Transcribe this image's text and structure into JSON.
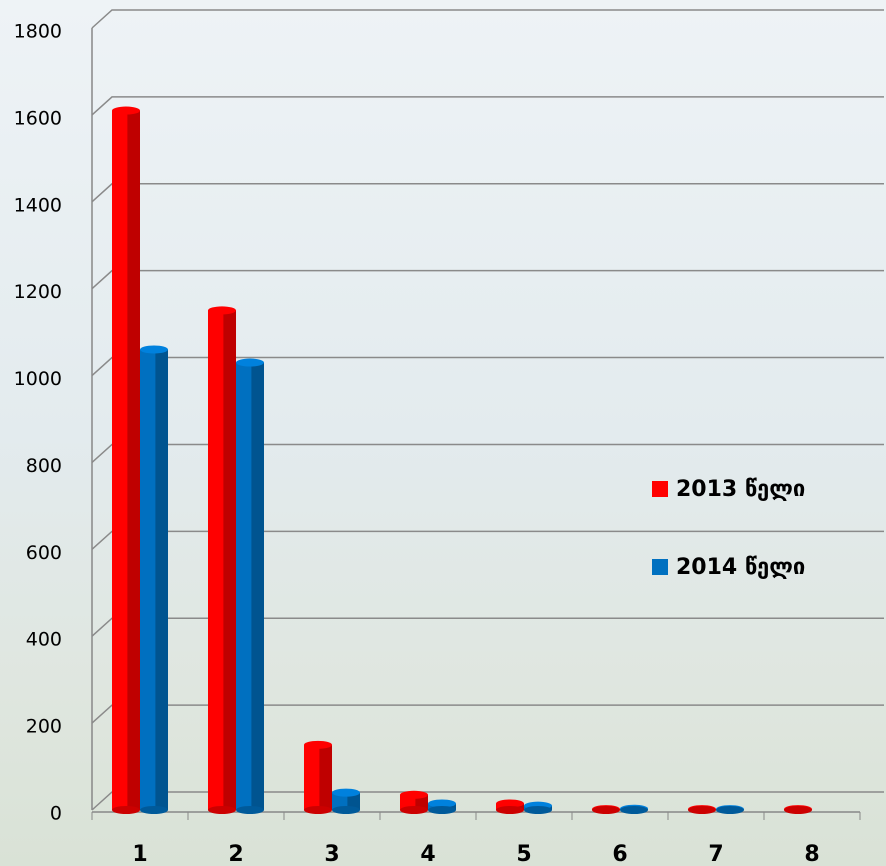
{
  "chart_data": {
    "type": "bar",
    "categories": [
      "1",
      "2",
      "3",
      "4",
      "5",
      "6",
      "7",
      "8"
    ],
    "series": [
      {
        "name": "2013 წელი",
        "color": "#ff0000",
        "values": [
          1610,
          1150,
          150,
          35,
          15,
          2,
          2,
          2
        ]
      },
      {
        "name": "2014 წელი",
        "color": "#0070c0",
        "values": [
          1060,
          1030,
          40,
          15,
          10,
          3,
          2,
          null
        ]
      }
    ],
    "ylim": [
      0,
      1800
    ],
    "yticks": [
      0,
      200,
      400,
      600,
      800,
      1000,
      1200,
      1400,
      1600,
      1800
    ],
    "grid": true,
    "legend": "right"
  }
}
